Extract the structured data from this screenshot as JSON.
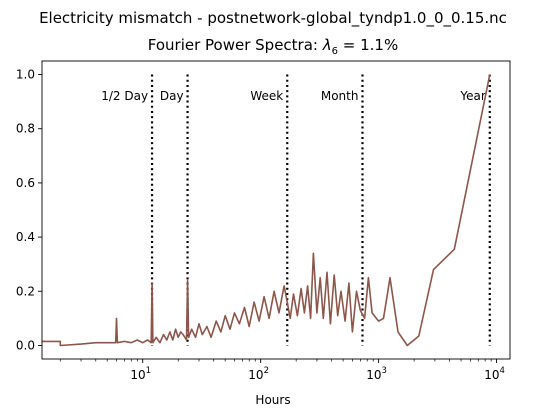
{
  "chart_data": {
    "type": "line",
    "suptitle": "Electricity mismatch - postnetwork-global_tyndp1.0_0_0.15.nc",
    "title_prefix": "Fourier Power Spectra: ",
    "title_symbol": "λ",
    "title_subscript": "6",
    "title_suffix": " = 1.1%",
    "xlabel": "Hours",
    "ylabel": "",
    "xscale": "log",
    "xlim": [
      1.4,
      13000
    ],
    "ylim": [
      -0.05,
      1.05
    ],
    "x_ticks": [
      {
        "value": 10,
        "base": "10",
        "exp": "1"
      },
      {
        "value": 100,
        "base": "10",
        "exp": "2"
      },
      {
        "value": 1000,
        "base": "10",
        "exp": "3"
      },
      {
        "value": 10000,
        "base": "10",
        "exp": "4"
      }
    ],
    "y_ticks": [
      {
        "value": 0.0,
        "label": "0.0"
      },
      {
        "value": 0.2,
        "label": "0.2"
      },
      {
        "value": 0.4,
        "label": "0.4"
      },
      {
        "value": 0.6,
        "label": "0.6"
      },
      {
        "value": 0.8,
        "label": "0.8"
      },
      {
        "value": 1.0,
        "label": "1.0"
      }
    ],
    "grid": false,
    "series_color": "#8c564b",
    "vlines": [
      {
        "x": 12,
        "label": "1/2 Day",
        "anchor": "end"
      },
      {
        "x": 24,
        "label": "Day",
        "anchor": "end"
      },
      {
        "x": 168,
        "label": "Week",
        "anchor": "end"
      },
      {
        "x": 730,
        "label": "Month",
        "anchor": "end"
      },
      {
        "x": 8760,
        "label": "Year",
        "anchor": "end"
      }
    ],
    "series": [
      {
        "x": [
          1.4,
          2.0,
          2.0,
          3.0,
          4.0,
          5.0,
          5.9,
          6.0,
          6.1,
          7.0,
          8.0,
          9.0,
          10.0,
          11.0,
          11.8,
          12.0,
          12.2,
          13.0,
          14.0,
          15.0,
          16.0,
          17.0,
          18.0,
          19.0,
          20.0,
          21.0,
          22.0,
          23.5,
          24.0,
          24.5,
          26.0,
          28.0,
          30.0,
          32.0,
          35.0,
          38.0,
          42.0,
          46.0,
          50.0,
          55.0,
          60.0,
          66.0,
          73.0,
          80.0,
          88.0,
          97.0,
          107.0,
          118.0,
          130.0,
          143.0,
          158.0,
          168.0,
          178.0,
          190.0,
          205.0,
          220.0,
          235.0,
          250.0,
          265.0,
          280.0,
          300.0,
          320.0,
          340.0,
          365.0,
          390.0,
          420.0,
          450.0,
          480.0,
          520.0,
          560.0,
          600.0,
          650.0,
          700.0,
          760.0,
          820.0,
          880.0,
          1000.0,
          1100.0,
          1250.0,
          1460.0,
          1750.0,
          2190.0,
          2920.0,
          4380.0,
          8760.0
        ],
        "y": [
          0.015,
          0.015,
          0.0,
          0.005,
          0.01,
          0.01,
          0.01,
          0.1,
          0.01,
          0.015,
          0.01,
          0.02,
          0.01,
          0.02,
          0.01,
          0.23,
          0.01,
          0.03,
          0.01,
          0.04,
          0.02,
          0.05,
          0.02,
          0.06,
          0.03,
          0.05,
          0.04,
          0.02,
          0.24,
          0.03,
          0.06,
          0.03,
          0.08,
          0.04,
          0.07,
          0.03,
          0.09,
          0.05,
          0.11,
          0.06,
          0.12,
          0.08,
          0.14,
          0.07,
          0.16,
          0.09,
          0.18,
          0.1,
          0.2,
          0.12,
          0.22,
          0.16,
          0.1,
          0.19,
          0.11,
          0.21,
          0.12,
          0.22,
          0.1,
          0.34,
          0.12,
          0.25,
          0.1,
          0.27,
          0.08,
          0.26,
          0.11,
          0.2,
          0.09,
          0.23,
          0.05,
          0.2,
          0.13,
          0.1,
          0.25,
          0.12,
          0.09,
          0.1,
          0.25,
          0.05,
          0.0,
          0.035,
          0.28,
          0.355,
          1.0
        ]
      }
    ]
  }
}
